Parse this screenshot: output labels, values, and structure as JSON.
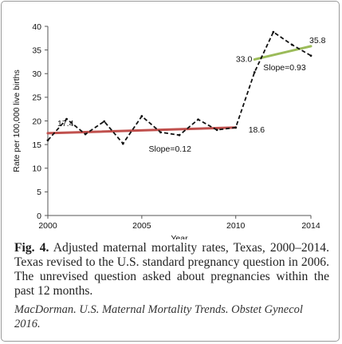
{
  "chart_data": {
    "type": "line",
    "title": "",
    "xlabel": "Year",
    "ylabel": "Rate per 100,000 live births",
    "xlim": [
      2000,
      2014
    ],
    "ylim": [
      0,
      40
    ],
    "x_ticks": [
      "2000",
      "2005",
      "2010",
      "2014"
    ],
    "y_ticks": [
      "0",
      "5",
      "10",
      "15",
      "20",
      "25",
      "30",
      "35",
      "40"
    ],
    "grid": false,
    "legend": "none",
    "series": [
      {
        "style": "dashed",
        "color": "#111111",
        "x": [
          2000,
          2001,
          2002,
          2003,
          2004,
          2005,
          2006,
          2007,
          2008,
          2009,
          2010,
          2011,
          2012,
          2013,
          2014
        ],
        "y": [
          15.9,
          20.4,
          17.2,
          19.9,
          15.2,
          21.0,
          17.6,
          17.0,
          20.3,
          18.1,
          18.6,
          30.3,
          38.8,
          36.1,
          33.8
        ]
      }
    ],
    "trendlines": [
      {
        "color": "#c0504d",
        "x": [
          2000,
          2010
        ],
        "y": [
          17.4,
          18.6
        ],
        "slope_label": "Slope=0.12"
      },
      {
        "color": "#9bbb59",
        "x": [
          2011,
          2014
        ],
        "y": [
          33.0,
          35.8
        ],
        "slope_label": "Slope=0.93"
      }
    ],
    "data_labels": [
      "17.4",
      "18.6",
      "33.0",
      "35.8"
    ]
  },
  "caption": {
    "fig_label": "Fig. 4.",
    "text": " Adjusted maternal mortality rates, Texas, 2000–2014. Texas revised to the U.S. standard pregnancy question in 2006. The unrevised question asked about pregnancies within the past 12 months.",
    "citation": "MacDorman. U.S. Maternal Mortality Trends. Obstet Gynecol 2016."
  }
}
